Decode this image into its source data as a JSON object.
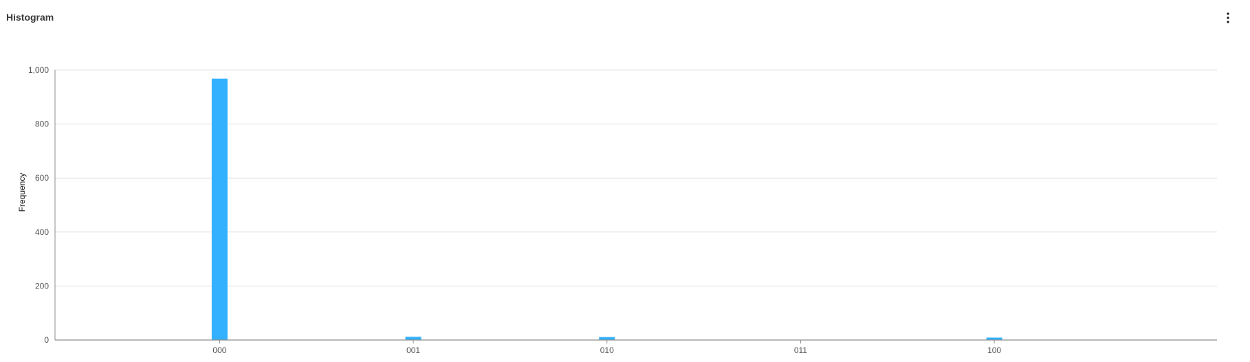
{
  "header": {
    "title": "Histogram",
    "overflow_icon": "overflow-menu-vertical-icon"
  },
  "colors": {
    "bar": "#33b1ff",
    "grid": "#e0e0e0",
    "axis": "#8d8d8d"
  },
  "chart_data": {
    "type": "bar",
    "title": "",
    "xlabel": "",
    "ylabel": "Frequency",
    "categories": [
      "000",
      "001",
      "010",
      "011",
      "100"
    ],
    "values": [
      968,
      12,
      11,
      0,
      9
    ],
    "ylim": [
      0,
      1000
    ],
    "yticks": [
      0,
      200,
      400,
      600,
      800,
      1000
    ],
    "ytick_labels": [
      "0",
      "200",
      "400",
      "600",
      "800",
      "1,000"
    ],
    "grid": true,
    "legend": "none"
  }
}
